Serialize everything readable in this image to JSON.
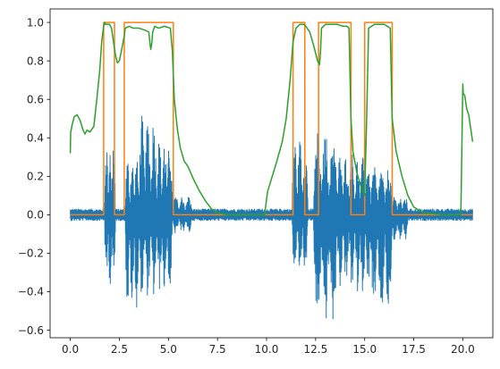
{
  "chart_data": {
    "type": "line",
    "title": "",
    "xlabel": "",
    "ylabel": "",
    "xlim": [
      -1.03,
      21.53
    ],
    "ylim": [
      -0.639,
      1.07
    ],
    "grid": false,
    "legend": "none",
    "x_ticks": [
      0.0,
      2.5,
      5.0,
      7.5,
      10.0,
      12.5,
      15.0,
      17.5,
      20.0
    ],
    "x_tick_labels": [
      "0.0",
      "2.5",
      "5.0",
      "7.5",
      "10.0",
      "12.5",
      "15.0",
      "17.5",
      "20.0"
    ],
    "y_ticks": [
      -0.6,
      -0.4,
      -0.2,
      0.0,
      0.2,
      0.4,
      0.6,
      0.8,
      1.0
    ],
    "y_tick_labels": [
      "−0.6",
      "−0.4",
      "−0.2",
      "0.0",
      "0.2",
      "0.4",
      "0.6",
      "0.8",
      "1.0"
    ],
    "series": [
      {
        "color": "#1f77b4",
        "kind": "waveform",
        "baseline_amplitude": 0.03,
        "x_range": [
          0.0,
          20.5
        ],
        "bursts": [
          {
            "x_start": 1.75,
            "x_end": 2.3,
            "max": 0.4,
            "min": -0.37
          },
          {
            "x_start": 2.8,
            "x_end": 3.5,
            "max": 0.3,
            "min": -0.5
          },
          {
            "x_start": 3.5,
            "x_end": 4.4,
            "max": 0.52,
            "min": -0.43
          },
          {
            "x_start": 4.4,
            "x_end": 5.2,
            "max": 0.4,
            "min": -0.4
          },
          {
            "x_start": 5.2,
            "x_end": 6.2,
            "max": 0.1,
            "min": -0.1
          },
          {
            "x_start": 11.3,
            "x_end": 12.1,
            "max": 0.4,
            "min": -0.3
          },
          {
            "x_start": 12.4,
            "x_end": 13.6,
            "max": 0.43,
            "min": -0.57
          },
          {
            "x_start": 13.6,
            "x_end": 14.5,
            "max": 0.33,
            "min": -0.38
          },
          {
            "x_start": 14.5,
            "x_end": 15.3,
            "max": 0.3,
            "min": -0.4
          },
          {
            "x_start": 15.3,
            "x_end": 16.4,
            "max": 0.25,
            "min": -0.53
          },
          {
            "x_start": 16.4,
            "x_end": 17.2,
            "max": 0.1,
            "min": -0.15
          }
        ]
      },
      {
        "color": "#ff7f0e",
        "kind": "step",
        "x": [
          0.0,
          1.7,
          1.7,
          2.25,
          2.25,
          2.75,
          2.75,
          5.25,
          5.25,
          11.35,
          11.35,
          11.95,
          11.95,
          12.65,
          12.65,
          14.3,
          14.3,
          15.0,
          15.0,
          16.4,
          16.4,
          20.5
        ],
        "y": [
          0,
          0,
          1,
          1,
          0,
          0,
          1,
          1,
          0,
          0,
          1,
          1,
          0,
          0,
          1,
          1,
          0,
          0,
          1,
          1,
          0,
          0
        ]
      },
      {
        "color": "#2ca02c",
        "kind": "line",
        "x": [
          0.0,
          0.02,
          0.1,
          0.2,
          0.35,
          0.5,
          0.65,
          0.75,
          0.85,
          1.0,
          1.2,
          1.35,
          1.5,
          1.6,
          1.7,
          1.75,
          1.8,
          2.0,
          2.1,
          2.2,
          2.3,
          2.4,
          2.5,
          2.6,
          2.75,
          2.8,
          3.0,
          3.2,
          3.5,
          3.8,
          4.0,
          4.05,
          4.1,
          4.15,
          4.2,
          4.3,
          4.5,
          4.8,
          5.1,
          5.2,
          5.3,
          5.45,
          5.6,
          5.8,
          6.0,
          6.3,
          6.6,
          6.9,
          7.2,
          7.5,
          8.0,
          9.0,
          9.9,
          10.0,
          10.05,
          10.2,
          10.5,
          10.8,
          11.0,
          11.2,
          11.35,
          11.5,
          11.7,
          11.9,
          12.0,
          12.2,
          12.4,
          12.6,
          12.7,
          12.75,
          12.8,
          13.0,
          13.3,
          13.6,
          13.9,
          14.1,
          14.2,
          14.3,
          14.4,
          14.6,
          14.8,
          15.0,
          15.1,
          15.2,
          15.5,
          16.0,
          16.3,
          16.4,
          16.6,
          16.9,
          17.2,
          17.5,
          18.0,
          19.0,
          19.9,
          20.0,
          20.02,
          20.1,
          20.2,
          20.3,
          20.4,
          20.5
        ],
        "y": [
          0.32,
          0.43,
          0.47,
          0.51,
          0.52,
          0.49,
          0.44,
          0.42,
          0.44,
          0.43,
          0.46,
          0.6,
          0.75,
          0.9,
          0.98,
          1.0,
          0.99,
          0.99,
          0.97,
          0.9,
          0.83,
          0.79,
          0.8,
          0.85,
          0.93,
          0.97,
          0.98,
          0.97,
          0.97,
          0.96,
          0.95,
          0.9,
          0.86,
          0.89,
          0.95,
          0.98,
          0.97,
          0.98,
          0.97,
          0.85,
          0.6,
          0.45,
          0.35,
          0.28,
          0.25,
          0.18,
          0.12,
          0.07,
          0.03,
          0.01,
          0.0,
          0.0,
          0.0,
          0.08,
          0.12,
          0.17,
          0.27,
          0.38,
          0.5,
          0.7,
          0.9,
          0.97,
          0.99,
          0.99,
          0.98,
          0.95,
          0.88,
          0.8,
          0.78,
          0.85,
          0.97,
          0.99,
          0.99,
          0.99,
          0.98,
          0.98,
          0.97,
          0.5,
          0.33,
          0.22,
          0.15,
          0.1,
          0.5,
          0.97,
          0.99,
          0.99,
          0.97,
          0.5,
          0.33,
          0.2,
          0.1,
          0.04,
          0.01,
          0.0,
          0.0,
          0.68,
          0.63,
          0.62,
          0.55,
          0.52,
          0.45,
          0.38
        ]
      }
    ]
  }
}
